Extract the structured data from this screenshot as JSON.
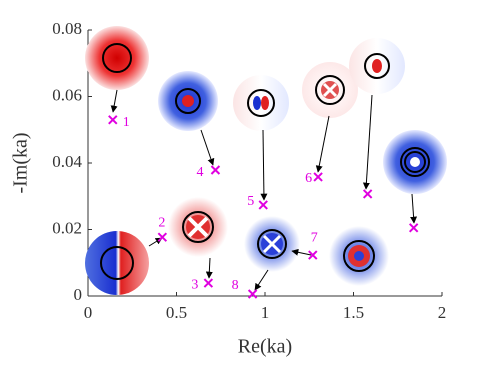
{
  "chart_data": {
    "type": "scatter",
    "x_label": "Re(ka)",
    "y_label": "-Im(ka)",
    "x": [
      0.14,
      0.42,
      0.68,
      0.72,
      0.99,
      1.3,
      1.27,
      0.93,
      1.58,
      1.84
    ],
    "values": [
      0.053,
      0.0177,
      0.0039,
      0.0379,
      0.0274,
      0.0358,
      0.0123,
      0.0006,
      0.0307,
      0.0205
    ],
    "point_labels": [
      1,
      2,
      3,
      4,
      5,
      6,
      7,
      8,
      null,
      null
    ],
    "color": "#e000e0",
    "xlim": [
      0,
      2
    ],
    "ylim": [
      0,
      0.08
    ],
    "xticks": [
      0,
      0.5,
      1,
      1.5,
      2
    ],
    "yticks": [
      0,
      0.02,
      0.04,
      0.06,
      0.08
    ]
  }
}
